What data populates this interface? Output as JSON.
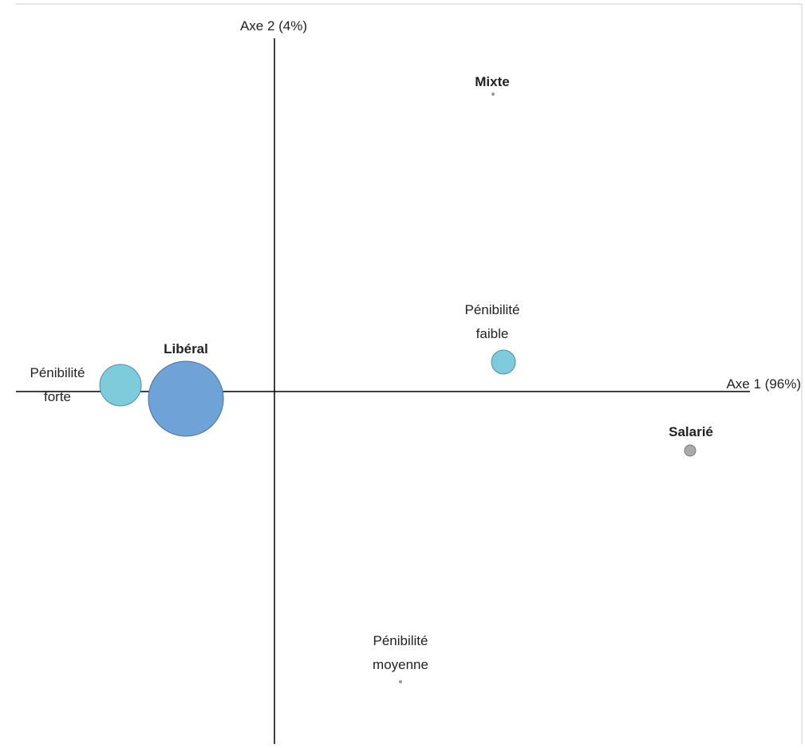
{
  "axes": {
    "x_label": "Axe 1 (96%)",
    "y_label": "Axe 2 (4%)"
  },
  "nodes": [
    {
      "label": [
        "Mixte"
      ],
      "bold": true
    },
    {
      "label": [
        "Pénibilité",
        "faible"
      ],
      "bold": false
    },
    {
      "label": [
        "Libéral"
      ],
      "bold": true
    },
    {
      "label": [
        "Pénibilité",
        "forte"
      ],
      "bold": false
    },
    {
      "label": [
        "Salarié"
      ],
      "bold": true
    },
    {
      "label": [
        "Pénibilité",
        "moyenne"
      ],
      "bold": false
    }
  ]
}
